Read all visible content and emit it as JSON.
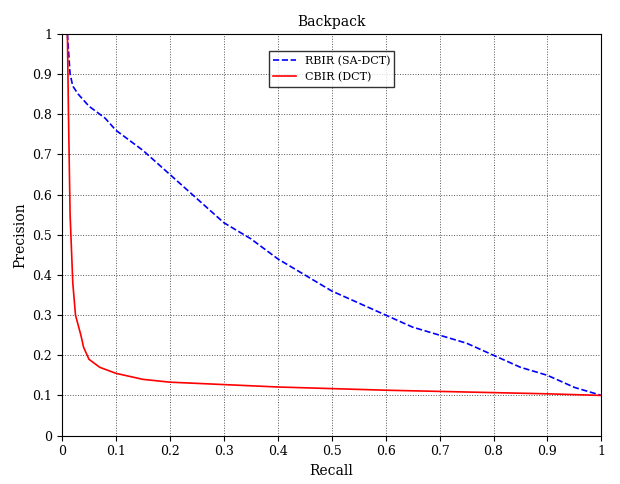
{
  "chart_data": {
    "type": "line",
    "title": "Backpack",
    "x_label": "Recall",
    "y_label": "Precision",
    "series": [
      {
        "name": "RBIR (SA-DCT)",
        "color": "#0000ff",
        "line_style": "dashed",
        "x": [
          0.01,
          0.015,
          0.02,
          0.03,
          0.05,
          0.08,
          0.1,
          0.15,
          0.2,
          0.25,
          0.3,
          0.35,
          0.4,
          0.45,
          0.5,
          0.55,
          0.6,
          0.65,
          0.7,
          0.75,
          0.8,
          0.85,
          0.9,
          0.95,
          1.0
        ],
        "values": [
          1.0,
          0.9,
          0.87,
          0.85,
          0.82,
          0.79,
          0.76,
          0.71,
          0.65,
          0.59,
          0.53,
          0.49,
          0.44,
          0.4,
          0.36,
          0.33,
          0.3,
          0.27,
          0.25,
          0.23,
          0.2,
          0.17,
          0.15,
          0.12,
          0.1
        ]
      },
      {
        "name": "CBIR (DCT)",
        "color": "#ff0000",
        "line_style": "solid",
        "x": [
          0.01,
          0.012,
          0.015,
          0.02,
          0.025,
          0.035,
          0.04,
          0.05,
          0.07,
          0.1,
          0.15,
          0.2,
          0.3,
          0.4,
          0.5,
          0.6,
          0.7,
          0.8,
          0.9,
          1.0
        ],
        "values": [
          1.0,
          0.8,
          0.55,
          0.38,
          0.3,
          0.25,
          0.22,
          0.19,
          0.17,
          0.155,
          0.14,
          0.133,
          0.127,
          0.121,
          0.117,
          0.113,
          0.11,
          0.107,
          0.104,
          0.1
        ]
      }
    ],
    "xlim": [
      0,
      1
    ],
    "ylim": [
      0,
      1
    ],
    "xticks": [
      0,
      0.1,
      0.2,
      0.3,
      0.4,
      0.5,
      0.6,
      0.7,
      0.8,
      0.9,
      1
    ],
    "yticks": [
      0,
      0.1,
      0.2,
      0.3,
      0.4,
      0.5,
      0.6,
      0.7,
      0.8,
      0.9,
      1
    ],
    "grid": true,
    "legend": "upper center"
  }
}
